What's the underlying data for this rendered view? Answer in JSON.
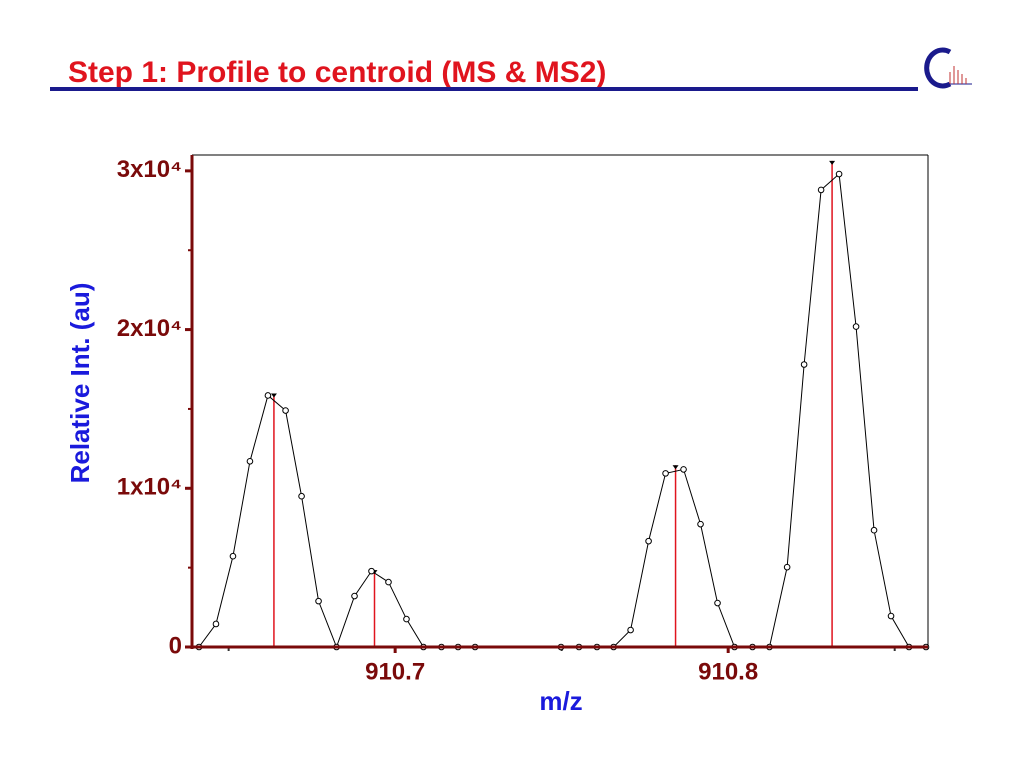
{
  "chart_data": {
    "type": "line",
    "title": "Step 1: Profile to centroid (MS & MS2)",
    "xlabel": "m/z",
    "ylabel": "Relative Int. (au)",
    "xlim": [
      910.639,
      910.86
    ],
    "ylim": [
      0,
      31000
    ],
    "xticks": [
      910.7,
      910.8
    ],
    "x_minor_ticks": [
      910.65,
      910.75,
      910.85
    ],
    "yticks": [
      {
        "value": 0,
        "label": "0"
      },
      {
        "value": 10000,
        "label": "1x10⁴"
      },
      {
        "value": 20000,
        "label": "2x10⁴"
      },
      {
        "value": 30000,
        "label": "3x10⁴"
      }
    ],
    "y_minor_ticks": [
      5000,
      15000,
      25000
    ],
    "profile": {
      "color": "#000000",
      "x": [
        910.6411,
        910.6462,
        910.6513,
        910.6564,
        910.6618,
        910.6671,
        910.6719,
        910.677,
        910.6824,
        910.6878,
        910.6929,
        910.698,
        910.7034,
        910.7085,
        910.7139,
        910.7189,
        910.724,
        910.7498,
        910.7552,
        910.7606,
        910.7656,
        910.7707,
        910.7761,
        910.7812,
        910.7866,
        910.7917,
        910.7968,
        910.8019,
        910.8073,
        910.8124,
        910.8177,
        910.8228,
        910.8279,
        910.8333,
        910.8384,
        910.8438,
        910.8489,
        910.8543,
        910.8594
      ],
      "values": [
        0,
        1450,
        5720,
        11700,
        15850,
        14900,
        9500,
        2890,
        0,
        3210,
        4780,
        4090,
        1760,
        0,
        0,
        0,
        0,
        0,
        0,
        0,
        0,
        1070,
        6670,
        10940,
        11190,
        7740,
        2770,
        0,
        0,
        0,
        5030,
        17800,
        28800,
        29800,
        20190,
        7360,
        1950,
        0,
        0
      ]
    },
    "centroids": {
      "color": "#e0141e",
      "x": [
        910.6636,
        910.6938,
        910.7842,
        910.8312
      ],
      "values": [
        15970,
        4840,
        11450,
        30630
      ]
    }
  }
}
